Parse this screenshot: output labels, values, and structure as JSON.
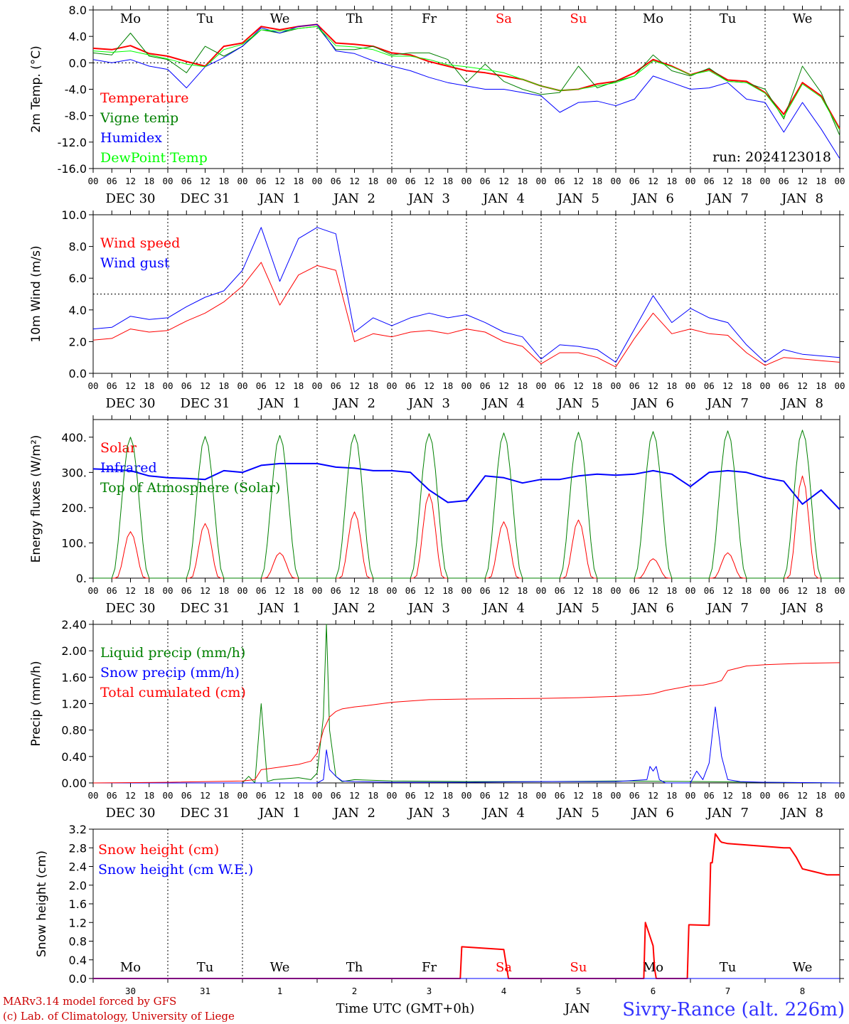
{
  "chart_data": [
    {
      "type": "line",
      "ylabel": "2m Temp. (°C)",
      "ylim": [
        -16,
        8
      ],
      "yticks": [
        "8.0",
        "4.0",
        "0.0",
        "-4.0",
        "-8.0",
        "-12.0",
        "-16.0"
      ],
      "ytick_values": [
        8,
        4,
        0,
        -4,
        -8,
        -12,
        -16
      ],
      "reference_line": 0,
      "x_hour_labels": [
        "00",
        "06",
        "12",
        "18"
      ],
      "x_date_labels": [
        "DEC 30",
        "DEC 31",
        "JAN  1",
        "JAN  2",
        "JAN  3",
        "JAN  4",
        "JAN  5",
        "JAN  6",
        "JAN  7",
        "JAN  8"
      ],
      "day_of_week": [
        "Mo",
        "Tu",
        "We",
        "Th",
        "Fr",
        "Sa",
        "Su",
        "Mo",
        "Tu",
        "We"
      ],
      "day_of_week_colors": [
        "#000000",
        "#000000",
        "#000000",
        "#000000",
        "#000000",
        "#ff0000",
        "#ff0000",
        "#000000",
        "#000000",
        "#000000"
      ],
      "run_label": "run: 2024123018",
      "x_hours": [
        0,
        6,
        12,
        18,
        24,
        30,
        36,
        42,
        48,
        54,
        60,
        66,
        72,
        78,
        84,
        90,
        96,
        102,
        108,
        114,
        120,
        126,
        132,
        138,
        144,
        150,
        156,
        162,
        168,
        174,
        180,
        186,
        192,
        198,
        204,
        210,
        216,
        222,
        228,
        234,
        240
      ],
      "series": [
        {
          "name": "Temperature",
          "color": "#ff0000",
          "width": 2,
          "values": [
            2.2,
            2.0,
            2.6,
            1.4,
            1.0,
            0.2,
            -0.5,
            2.5,
            3.0,
            5.5,
            5.0,
            5.5,
            5.8,
            3.0,
            2.8,
            2.5,
            1.5,
            1.2,
            0.2,
            -0.5,
            -1.2,
            -1.5,
            -2.0,
            -2.5,
            -3.5,
            -4.2,
            -4.0,
            -3.2,
            -2.8,
            -1.5,
            0.5,
            -0.5,
            -1.8,
            -1.0,
            -2.6,
            -2.8,
            -4.5,
            -7.8,
            -3.0,
            -5.0,
            -10.0
          ]
        },
        {
          "name": "Vigne temp",
          "color": "#008000",
          "width": 1,
          "values": [
            1.5,
            1.2,
            4.5,
            1.0,
            0.5,
            -1.5,
            2.5,
            1.0,
            2.5,
            5.0,
            4.5,
            5.2,
            5.5,
            2.0,
            2.0,
            2.5,
            1.2,
            1.5,
            1.5,
            0.5,
            -3.0,
            -0.2,
            -2.8,
            -4.0,
            -4.8,
            -4.5,
            -0.5,
            -3.8,
            -2.8,
            -2.0,
            1.2,
            -1.2,
            -2.0,
            -0.8,
            -2.8,
            -3.0,
            -4.0,
            -8.5,
            -0.5,
            -4.5,
            -11.0
          ]
        },
        {
          "name": "Humidex",
          "color": "#0000ff",
          "width": 1,
          "values": [
            0.5,
            0.0,
            0.5,
            -0.5,
            -1.0,
            -3.8,
            -0.6,
            0.8,
            2.5,
            5.3,
            4.5,
            5.5,
            5.8,
            1.8,
            1.4,
            0.3,
            -0.5,
            -1.2,
            -2.2,
            -3.0,
            -3.5,
            -4.0,
            -4.0,
            -4.5,
            -5.0,
            -7.5,
            -6.0,
            -5.8,
            -6.5,
            -5.5,
            -2.0,
            -3.0,
            -4.0,
            -3.8,
            -3.0,
            -5.5,
            -6.0,
            -10.5,
            -6.0,
            -10.0,
            -14.5
          ]
        },
        {
          "name": "DewPoint Temp",
          "color": "#00ff00",
          "width": 1,
          "values": [
            1.8,
            1.6,
            1.8,
            1.2,
            0.6,
            -0.2,
            -0.6,
            2.0,
            2.8,
            5.0,
            4.8,
            5.2,
            5.5,
            2.6,
            2.4,
            2.0,
            1.0,
            1.0,
            0.5,
            -0.3,
            -0.6,
            -1.0,
            -1.5,
            -2.5,
            -3.5,
            -4.2,
            -4.0,
            -3.5,
            -3.0,
            -2.0,
            0.3,
            -0.6,
            -1.8,
            -1.2,
            -2.8,
            -3.0,
            -4.6,
            -8.2,
            -3.2,
            -5.2,
            -10.2
          ]
        }
      ]
    },
    {
      "type": "line",
      "ylabel": "10m Wind (m/s)",
      "ylim": [
        0,
        10
      ],
      "yticks": [
        "10.0",
        "8.0",
        "6.0",
        "4.0",
        "2.0",
        "0.0"
      ],
      "ytick_values": [
        10,
        8,
        6,
        4,
        2,
        0
      ],
      "reference_line": 5,
      "x_hour_labels": [
        "00",
        "06",
        "12",
        "18"
      ],
      "x_date_labels": [
        "DEC 30",
        "DEC 31",
        "JAN  1",
        "JAN  2",
        "JAN  3",
        "JAN  4",
        "JAN  5",
        "JAN  6",
        "JAN  7",
        "JAN  8"
      ],
      "x_hours": [
        0,
        6,
        12,
        18,
        24,
        30,
        36,
        42,
        48,
        54,
        60,
        66,
        72,
        78,
        84,
        90,
        96,
        102,
        108,
        114,
        120,
        126,
        132,
        138,
        144,
        150,
        156,
        162,
        168,
        174,
        180,
        186,
        192,
        198,
        204,
        210,
        216,
        222,
        228,
        234,
        240
      ],
      "series": [
        {
          "name": "Wind speed",
          "color": "#ff0000",
          "width": 1,
          "values": [
            2.1,
            2.2,
            2.8,
            2.6,
            2.7,
            3.3,
            3.8,
            4.5,
            5.5,
            7.0,
            4.3,
            6.2,
            6.8,
            6.5,
            2.0,
            2.5,
            2.3,
            2.6,
            2.7,
            2.5,
            2.8,
            2.6,
            2.0,
            1.7,
            0.6,
            1.3,
            1.3,
            1.0,
            0.4,
            2.2,
            3.8,
            2.5,
            2.8,
            2.5,
            2.4,
            1.3,
            0.5,
            1.0,
            0.9,
            0.8,
            0.7
          ]
        },
        {
          "name": "Wind gust",
          "color": "#0000ff",
          "width": 1,
          "values": [
            2.8,
            2.9,
            3.6,
            3.4,
            3.5,
            4.2,
            4.8,
            5.2,
            6.5,
            9.2,
            5.8,
            8.5,
            9.2,
            8.8,
            2.6,
            3.5,
            3.0,
            3.5,
            3.8,
            3.5,
            3.7,
            3.2,
            2.6,
            2.3,
            0.9,
            1.8,
            1.7,
            1.5,
            0.7,
            2.8,
            4.9,
            3.2,
            4.1,
            3.5,
            3.2,
            1.8,
            0.7,
            1.5,
            1.2,
            1.1,
            1.0
          ]
        }
      ]
    },
    {
      "type": "line",
      "ylabel": "Energy fluxes (W/m²)",
      "ylim": [
        0,
        450
      ],
      "yticks": [
        "400.",
        "300.",
        "200.",
        "100.",
        "0."
      ],
      "ytick_values": [
        400,
        300,
        200,
        100,
        0
      ],
      "x_hour_labels": [
        "00",
        "06",
        "12",
        "18"
      ],
      "x_date_labels": [
        "DEC 30",
        "DEC 31",
        "JAN  1",
        "JAN  2",
        "JAN  3",
        "JAN  4",
        "JAN  5",
        "JAN  6",
        "JAN  7",
        "JAN  8"
      ],
      "daily_peaks": {
        "solar": [
          132,
          155,
          72,
          188,
          240,
          160,
          165,
          55,
          72,
          290
        ],
        "top_of_atmosphere": [
          400,
          402,
          405,
          408,
          410,
          412,
          414,
          416,
          418,
          420
        ]
      },
      "series": [
        {
          "name": "Solar",
          "color": "#ff0000",
          "width": 1
        },
        {
          "name": "Infrared",
          "color": "#0000ff",
          "width": 2,
          "x_hours": [
            0,
            6,
            12,
            18,
            24,
            30,
            36,
            42,
            48,
            54,
            60,
            66,
            72,
            78,
            84,
            90,
            96,
            102,
            108,
            114,
            120,
            126,
            132,
            138,
            144,
            150,
            156,
            162,
            168,
            174,
            180,
            186,
            192,
            198,
            204,
            210,
            216,
            222,
            228,
            234,
            240
          ],
          "values": [
            310,
            308,
            305,
            290,
            285,
            283,
            280,
            305,
            300,
            320,
            325,
            325,
            325,
            315,
            312,
            305,
            305,
            300,
            250,
            215,
            220,
            290,
            285,
            270,
            280,
            280,
            290,
            295,
            292,
            295,
            305,
            295,
            260,
            300,
            305,
            300,
            285,
            275,
            210,
            250,
            195
          ]
        },
        {
          "name": "Top of Atmosphere (Solar)",
          "color": "#008000",
          "width": 1
        }
      ]
    },
    {
      "type": "line",
      "ylabel": "Precip (mm/h)",
      "ylim": [
        0,
        2.4
      ],
      "yticks": [
        "2.40",
        "2.00",
        "1.60",
        "1.20",
        "0.80",
        "0.40",
        "0.00"
      ],
      "ytick_values": [
        2.4,
        2.0,
        1.6,
        1.2,
        0.8,
        0.4,
        0.0
      ],
      "x_hour_labels": [
        "00",
        "06",
        "12",
        "18"
      ],
      "x_date_labels": [
        "DEC 30",
        "DEC 31",
        "JAN  1",
        "JAN  2",
        "JAN  3",
        "JAN  4",
        "JAN  5",
        "JAN  6",
        "JAN  7",
        "JAN  8"
      ],
      "series": [
        {
          "name": "Liquid precip (mm/h)",
          "color": "#008000",
          "width": 1,
          "x_hours": [
            0,
            46,
            48,
            50,
            52,
            54,
            56,
            58,
            66,
            70,
            72,
            74,
            75,
            76,
            78,
            80,
            84,
            96,
            120,
            144,
            168,
            196,
            216,
            240
          ],
          "values": [
            0,
            0,
            0,
            0.1,
            0,
            1.2,
            0.02,
            0.05,
            0.08,
            0.05,
            0.15,
            1.0,
            2.4,
            0.8,
            0.1,
            0.02,
            0.05,
            0.03,
            0.02,
            0.02,
            0.03,
            0.02,
            0.01,
            0
          ]
        },
        {
          "name": "Snow precip (mm/h)",
          "color": "#0000ff",
          "width": 1,
          "x_hours": [
            0,
            72,
            74,
            75,
            76,
            78,
            80,
            84,
            96,
            120,
            144,
            168,
            178,
            179,
            180,
            181,
            182,
            184,
            188,
            192,
            194,
            196,
            198,
            200,
            202,
            204,
            208,
            216,
            240
          ],
          "values": [
            0,
            0,
            0.05,
            0.5,
            0.2,
            0.1,
            0.03,
            0.02,
            0.01,
            0.01,
            0.02,
            0.02,
            0.05,
            0.25,
            0.18,
            0.25,
            0.05,
            0,
            0,
            0,
            0.18,
            0.05,
            0.3,
            1.15,
            0.4,
            0.05,
            0.02,
            0.01,
            0
          ]
        },
        {
          "name": "Total cumulated (cm)",
          "color": "#ff0000",
          "width": 1,
          "x_hours": [
            0,
            24,
            48,
            52,
            54,
            60,
            66,
            70,
            72,
            74,
            76,
            78,
            80,
            84,
            88,
            96,
            108,
            120,
            144,
            156,
            168,
            176,
            180,
            184,
            192,
            196,
            198,
            200,
            202,
            204,
            210,
            216,
            228,
            240
          ],
          "values": [
            0.0,
            0.01,
            0.03,
            0.05,
            0.2,
            0.24,
            0.28,
            0.33,
            0.45,
            0.8,
            1.0,
            1.08,
            1.12,
            1.15,
            1.17,
            1.22,
            1.26,
            1.27,
            1.28,
            1.29,
            1.31,
            1.33,
            1.35,
            1.4,
            1.47,
            1.48,
            1.5,
            1.52,
            1.55,
            1.7,
            1.77,
            1.79,
            1.81,
            1.82
          ]
        }
      ]
    },
    {
      "type": "line",
      "ylabel": "Snow height (cm)",
      "ylim": [
        0,
        3.2
      ],
      "yticks": [
        "3.2",
        "2.8",
        "2.4",
        "2.0",
        "1.6",
        "1.2",
        "0.8",
        "0.4",
        "0.0"
      ],
      "ytick_values": [
        3.2,
        2.8,
        2.4,
        2.0,
        1.6,
        1.2,
        0.8,
        0.4,
        0.0
      ],
      "x_day_labels": [
        "30",
        "31",
        "1",
        "2",
        "3",
        "4",
        "5",
        "6",
        "7",
        "8"
      ],
      "day_of_week": [
        "Mo",
        "Tu",
        "We",
        "Th",
        "Fr",
        "Sa",
        "Su",
        "Mo",
        "Tu",
        "We"
      ],
      "day_of_week_colors": [
        "#000000",
        "#000000",
        "#000000",
        "#000000",
        "#000000",
        "#ff0000",
        "#ff0000",
        "#000000",
        "#000000",
        "#000000"
      ],
      "xlabel": "Time UTC (GMT+0h)",
      "xlabel_partial": "JAN",
      "series": [
        {
          "name": "Snow height (cm)",
          "color": "#ff0000",
          "width": 2,
          "x_hours": [
            0,
            118,
            118.5,
            132,
            133.5,
            134,
            177,
            177.5,
            178,
            180,
            180.5,
            181,
            191,
            191.5,
            192,
            198,
            198.5,
            199,
            200,
            201,
            201.5,
            202,
            204,
            216,
            222,
            224,
            226,
            228,
            236,
            240
          ],
          "values": [
            0,
            0,
            0.68,
            0.62,
            0,
            0,
            0,
            1.2,
            1.1,
            0.7,
            0.2,
            0,
            0,
            1.15,
            1.15,
            1.14,
            2.48,
            2.48,
            3.1,
            3.0,
            2.95,
            2.92,
            2.89,
            2.83,
            2.8,
            2.8,
            2.6,
            2.35,
            2.22,
            2.22
          ]
        },
        {
          "name": "Snow height (cm W.E.)",
          "color": "#0000ff",
          "width": 1,
          "x_hours": [
            0,
            240
          ],
          "values": [
            0,
            0
          ]
        }
      ]
    }
  ],
  "footer": {
    "model_line": "MARv3.14 model forced by GFS",
    "copyright_line": "(c) Lab. of Climatology, University of Liege",
    "station": "Sivry-Rance (alt. 226m)"
  },
  "colors": {
    "axis": "#000000",
    "footer_text": "#cc0000",
    "station_text": "#3333ff"
  }
}
